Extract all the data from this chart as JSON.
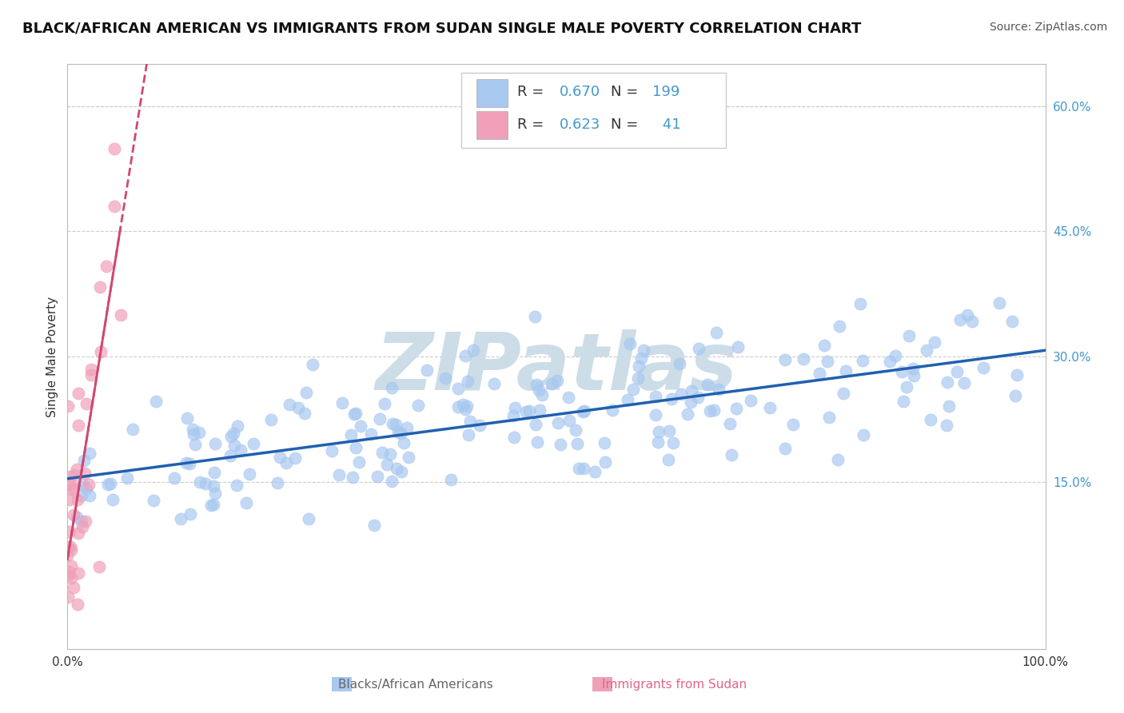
{
  "title": "BLACK/AFRICAN AMERICAN VS IMMIGRANTS FROM SUDAN SINGLE MALE POVERTY CORRELATION CHART",
  "source": "Source: ZipAtlas.com",
  "ylabel": "Single Male Poverty",
  "xlim": [
    0,
    1.0
  ],
  "ylim": [
    -0.05,
    0.65
  ],
  "y_tick_vals": [
    0.15,
    0.3,
    0.45,
    0.6
  ],
  "y_tick_labels": [
    "15.0%",
    "30.0%",
    "45.0%",
    "60.0%"
  ],
  "blue_R": 0.67,
  "blue_N": 199,
  "pink_R": 0.623,
  "pink_N": 41,
  "blue_color": "#a8c8f0",
  "pink_color": "#f0a0b8",
  "blue_line_color": "#2060b0",
  "pink_line_color": "#d04870",
  "watermark": "ZIPatlas",
  "watermark_color": "#ccdde8",
  "background_color": "#ffffff",
  "grid_color": "#cccccc",
  "title_fontsize": 13,
  "legend_fontsize": 13,
  "tick_color": "#4499cc",
  "text_color": "#333333",
  "blue_legend_label": "Blacks/African Americans",
  "pink_legend_label": "Immigrants from Sudan",
  "pink_legend_color": "#e06888"
}
